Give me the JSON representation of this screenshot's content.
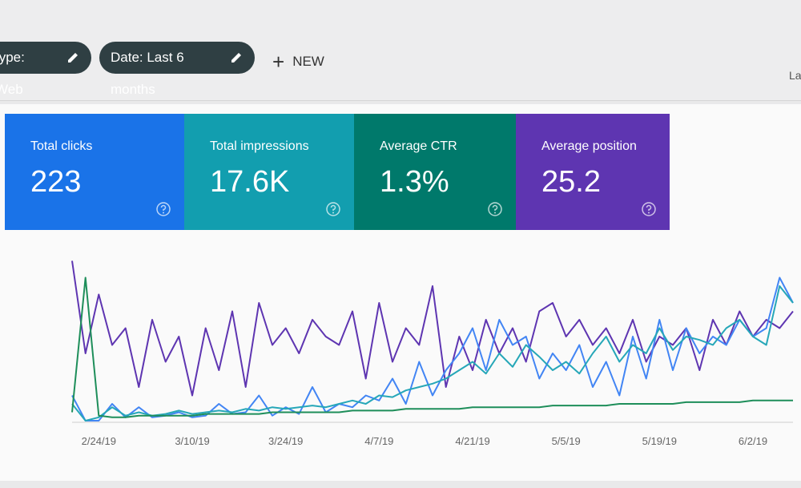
{
  "filters": [
    "type: Web",
    "Date: Last 6 months"
  ],
  "new_button": "NEW",
  "corner_label": "La",
  "cards": [
    {
      "label": "Total clicks",
      "value": "223",
      "color": "#1a73e8"
    },
    {
      "label": "Total impressions",
      "value": "17.6K",
      "color": "#129eaf"
    },
    {
      "label": "Average CTR",
      "value": "1.3%",
      "color": "#00796b"
    },
    {
      "label": "Average position",
      "value": "25.2",
      "color": "#5e35b1"
    }
  ],
  "chart_data": {
    "type": "line",
    "categories": [
      null,
      null,
      "2/24/19",
      null,
      null,
      null,
      null,
      null,
      null,
      "3/10/19",
      null,
      null,
      null,
      null,
      null,
      null,
      "3/24/19",
      null,
      null,
      null,
      null,
      null,
      null,
      "4/7/19",
      null,
      null,
      null,
      null,
      null,
      null,
      "4/21/19",
      null,
      null,
      null,
      null,
      null,
      null,
      "5/5/19",
      null,
      null,
      null,
      null,
      null,
      null,
      "5/19/19",
      null,
      null,
      null,
      null,
      null,
      null,
      "6/2/19",
      null,
      null,
      null
    ],
    "ylim": [
      0,
      100
    ],
    "series": [
      {
        "color": "#5e35b1",
        "values": [
          95,
          40,
          75,
          45,
          55,
          20,
          60,
          35,
          50,
          15,
          55,
          30,
          65,
          20,
          70,
          45,
          55,
          40,
          60,
          50,
          45,
          65,
          25,
          70,
          35,
          55,
          45,
          80,
          20,
          50,
          30,
          60,
          40,
          55,
          35,
          65,
          70,
          50,
          60,
          45,
          55,
          40,
          60,
          35,
          50,
          45,
          55,
          30,
          60,
          45,
          65,
          50,
          60,
          55,
          65
        ]
      },
      {
        "color": "#4285f4",
        "values": [
          15,
          0,
          0,
          10,
          2,
          8,
          2,
          3,
          5,
          2,
          3,
          10,
          4,
          5,
          15,
          3,
          8,
          4,
          20,
          5,
          10,
          8,
          15,
          12,
          25,
          10,
          35,
          15,
          30,
          40,
          55,
          30,
          60,
          45,
          50,
          25,
          40,
          30,
          45,
          20,
          35,
          15,
          50,
          25,
          60,
          30,
          55,
          40,
          50,
          45,
          60,
          50,
          55,
          85,
          70
        ]
      },
      {
        "color": "#26a7b8",
        "values": [
          10,
          0,
          2,
          8,
          3,
          5,
          3,
          4,
          6,
          4,
          5,
          6,
          5,
          7,
          6,
          8,
          7,
          8,
          9,
          8,
          10,
          12,
          10,
          15,
          14,
          18,
          20,
          22,
          25,
          30,
          35,
          28,
          40,
          32,
          45,
          38,
          30,
          35,
          28,
          40,
          50,
          35,
          45,
          40,
          55,
          42,
          50,
          48,
          45,
          55,
          60,
          50,
          45,
          80,
          70
        ]
      },
      {
        "color": "#1e8e5a",
        "values": [
          5,
          85,
          3,
          2,
          2,
          3,
          3,
          3,
          3,
          3,
          4,
          4,
          4,
          4,
          4,
          5,
          5,
          5,
          5,
          5,
          5,
          6,
          6,
          6,
          6,
          7,
          7,
          7,
          7,
          7,
          8,
          8,
          8,
          8,
          8,
          8,
          9,
          9,
          9,
          9,
          9,
          10,
          10,
          10,
          10,
          10,
          11,
          11,
          11,
          11,
          11,
          12,
          12,
          12,
          12
        ]
      }
    ]
  }
}
